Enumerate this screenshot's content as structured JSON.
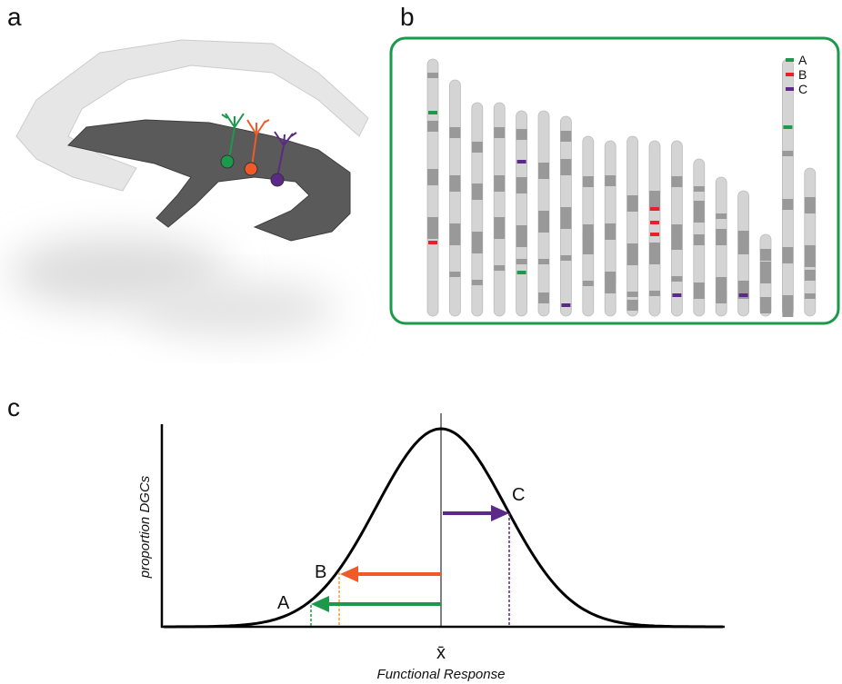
{
  "panels": {
    "a": "a",
    "b": "b",
    "c": "c"
  },
  "legend": [
    {
      "label": "A"
    },
    {
      "label": "B"
    },
    {
      "label": "C"
    }
  ],
  "plot": {
    "y_label": "proportion DGCs",
    "x_label": "Functional Response",
    "mean_label": "x̄",
    "points": [
      "A",
      "B",
      "C"
    ]
  }
}
